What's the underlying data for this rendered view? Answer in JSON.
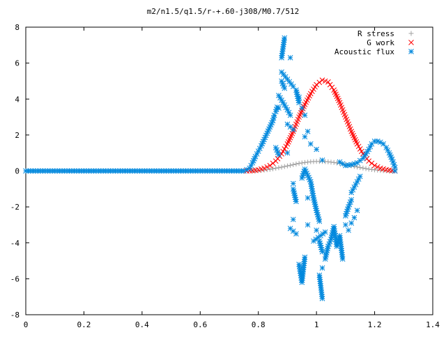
{
  "chart_data": {
    "type": "scatter",
    "title": "m2/n1.5/q1.5/r-+.60-j308/M0.7/512",
    "xlabel": "",
    "ylabel": "",
    "xlim": [
      0,
      1.4
    ],
    "ylim": [
      -8,
      8
    ],
    "x_ticks": [
      "0",
      "0.2",
      "0.4",
      "0.6",
      "0.8",
      "1",
      "1.2",
      "1.4"
    ],
    "y_ticks": [
      "8",
      "6",
      "4",
      "2",
      "0",
      "-2",
      "-4",
      "-6",
      "-8"
    ],
    "grid": false,
    "legend_position": "top-right",
    "series": [
      {
        "name": "R stress",
        "marker": "+",
        "color": "#a0a0a0",
        "points": [
          [
            0.78,
            0.0
          ],
          [
            0.8,
            0.02
          ],
          [
            0.82,
            0.05
          ],
          [
            0.84,
            0.09
          ],
          [
            0.86,
            0.15
          ],
          [
            0.88,
            0.21
          ],
          [
            0.9,
            0.28
          ],
          [
            0.92,
            0.35
          ],
          [
            0.94,
            0.42
          ],
          [
            0.96,
            0.47
          ],
          [
            0.98,
            0.51
          ],
          [
            1.0,
            0.53
          ],
          [
            1.02,
            0.53
          ],
          [
            1.04,
            0.51
          ],
          [
            1.06,
            0.47
          ],
          [
            1.08,
            0.42
          ],
          [
            1.1,
            0.36
          ],
          [
            1.12,
            0.29
          ],
          [
            1.14,
            0.22
          ],
          [
            1.16,
            0.16
          ],
          [
            1.18,
            0.1
          ],
          [
            1.2,
            0.06
          ],
          [
            1.22,
            0.03
          ],
          [
            1.24,
            0.01
          ],
          [
            1.26,
            0.0
          ]
        ]
      },
      {
        "name": "G work",
        "marker": "x",
        "color": "#ff0000",
        "points": [
          [
            0.76,
            0.0
          ],
          [
            0.78,
            0.02
          ],
          [
            0.8,
            0.06
          ],
          [
            0.82,
            0.15
          ],
          [
            0.84,
            0.3
          ],
          [
            0.86,
            0.55
          ],
          [
            0.88,
            0.95
          ],
          [
            0.9,
            1.5
          ],
          [
            0.92,
            2.2
          ],
          [
            0.94,
            3.0
          ],
          [
            0.96,
            3.7
          ],
          [
            0.98,
            4.3
          ],
          [
            1.0,
            4.8
          ],
          [
            1.02,
            5.05
          ],
          [
            1.04,
            4.95
          ],
          [
            1.06,
            4.5
          ],
          [
            1.08,
            3.8
          ],
          [
            1.1,
            3.0
          ],
          [
            1.12,
            2.2
          ],
          [
            1.14,
            1.5
          ],
          [
            1.16,
            0.95
          ],
          [
            1.18,
            0.55
          ],
          [
            1.2,
            0.3
          ],
          [
            1.22,
            0.15
          ],
          [
            1.24,
            0.07
          ],
          [
            1.26,
            0.02
          ],
          [
            1.27,
            0.0
          ]
        ]
      },
      {
        "name": "Acoustic flux",
        "marker": "*",
        "color": "#0088dd",
        "points": [
          [
            0.0,
            0.0
          ],
          [
            0.05,
            0.0
          ],
          [
            0.1,
            0.0
          ],
          [
            0.15,
            0.0
          ],
          [
            0.2,
            0.0
          ],
          [
            0.25,
            0.0
          ],
          [
            0.3,
            0.0
          ],
          [
            0.35,
            0.0
          ],
          [
            0.4,
            0.0
          ],
          [
            0.45,
            0.0
          ],
          [
            0.5,
            0.0
          ],
          [
            0.55,
            0.0
          ],
          [
            0.6,
            0.0
          ],
          [
            0.65,
            0.0
          ],
          [
            0.7,
            0.0
          ],
          [
            0.75,
            0.0
          ],
          [
            0.77,
            0.15
          ],
          [
            0.78,
            0.45
          ],
          [
            0.79,
            0.8
          ],
          [
            0.8,
            1.1
          ],
          [
            0.81,
            1.4
          ],
          [
            0.82,
            1.75
          ],
          [
            0.83,
            2.1
          ],
          [
            0.84,
            2.45
          ],
          [
            0.85,
            2.8
          ],
          [
            0.855,
            3.1
          ],
          [
            0.86,
            3.3
          ],
          [
            0.865,
            3.55
          ],
          [
            0.87,
            3.5
          ],
          [
            0.86,
            1.3
          ],
          [
            0.87,
            0.9
          ],
          [
            0.88,
            6.3
          ],
          [
            0.89,
            7.4
          ],
          [
            0.88,
            5.0
          ],
          [
            0.89,
            4.6
          ],
          [
            0.87,
            4.2
          ],
          [
            0.9,
            3.4
          ],
          [
            0.91,
            3.1
          ],
          [
            0.9,
            2.6
          ],
          [
            0.92,
            2.3
          ],
          [
            0.91,
            6.3
          ],
          [
            0.88,
            5.5
          ],
          [
            0.92,
            4.7
          ],
          [
            0.9,
            1.0
          ],
          [
            0.92,
            -0.7
          ],
          [
            0.92,
            -1.0
          ],
          [
            0.93,
            -1.7
          ],
          [
            0.92,
            -2.7
          ],
          [
            0.91,
            -3.2
          ],
          [
            0.93,
            -3.5
          ],
          [
            0.94,
            -5.2
          ],
          [
            0.95,
            -6.2
          ],
          [
            0.96,
            -4.8
          ],
          [
            0.97,
            -3.0
          ],
          [
            0.97,
            -1.5
          ],
          [
            0.95,
            -0.4
          ],
          [
            0.96,
            0.1
          ],
          [
            0.98,
            -0.6
          ],
          [
            0.99,
            -1.5
          ],
          [
            1.0,
            -2.2
          ],
          [
            1.01,
            -2.8
          ],
          [
            1.01,
            -3.9
          ],
          [
            1.02,
            -4.5
          ],
          [
            1.02,
            -5.4
          ],
          [
            1.01,
            -5.8
          ],
          [
            1.02,
            -7.1
          ],
          [
            1.03,
            -4.9
          ],
          [
            1.04,
            -4.2
          ],
          [
            1.05,
            -3.8
          ],
          [
            1.06,
            -3.1
          ],
          [
            1.07,
            -4.2
          ],
          [
            1.08,
            -3.6
          ],
          [
            1.09,
            -4.9
          ],
          [
            1.1,
            -3.0
          ],
          [
            1.1,
            -2.5
          ],
          [
            1.11,
            -2.0
          ],
          [
            1.12,
            -1.6
          ],
          [
            1.12,
            -1.2
          ],
          [
            1.13,
            -0.9
          ],
          [
            1.14,
            -0.6
          ],
          [
            1.15,
            -0.3
          ],
          [
            1.14,
            -2.2
          ],
          [
            1.13,
            -2.6
          ],
          [
            1.12,
            -2.9
          ],
          [
            1.11,
            -3.3
          ],
          [
            1.0,
            -3.3
          ],
          [
            0.99,
            -3.9
          ],
          [
            1.03,
            -3.4
          ],
          [
            1.02,
            0.6
          ],
          [
            1.0,
            1.2
          ],
          [
            0.98,
            1.5
          ],
          [
            0.97,
            2.2
          ],
          [
            0.96,
            3.1
          ],
          [
            0.95,
            3.5
          ],
          [
            0.94,
            4.1
          ],
          [
            0.93,
            4.5
          ],
          [
            0.94,
            3.8
          ],
          [
            0.96,
            1.9
          ],
          [
            1.08,
            0.5
          ],
          [
            1.1,
            0.3
          ],
          [
            1.12,
            0.35
          ],
          [
            1.14,
            0.45
          ],
          [
            1.16,
            0.7
          ],
          [
            1.17,
            0.95
          ],
          [
            1.18,
            1.2
          ],
          [
            1.19,
            1.5
          ],
          [
            1.2,
            1.65
          ],
          [
            1.21,
            1.65
          ],
          [
            1.22,
            1.6
          ],
          [
            1.23,
            1.5
          ],
          [
            1.24,
            1.3
          ],
          [
            1.25,
            1.0
          ],
          [
            1.26,
            0.65
          ],
          [
            1.27,
            0.2
          ],
          [
            1.27,
            0.0
          ]
        ]
      }
    ]
  }
}
